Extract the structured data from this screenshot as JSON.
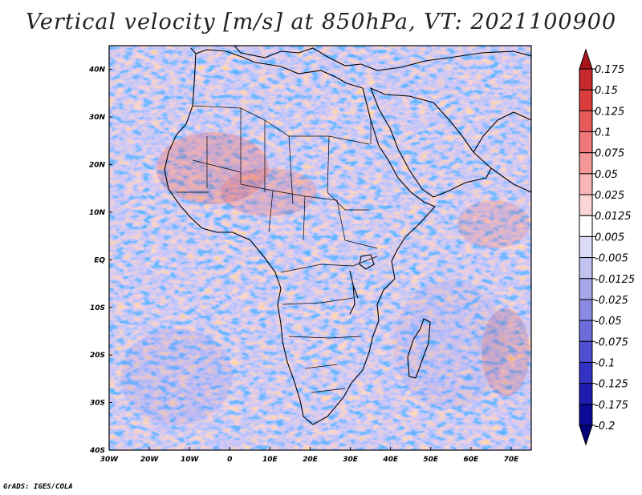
{
  "title": "Vertical velocity [m/s] at 850hPa, VT: 2021100900",
  "footer": "GrADS: IGES/COLA",
  "map": {
    "lon_ticks": [
      "30W",
      "20W",
      "10W",
      "0",
      "10E",
      "20E",
      "30E",
      "40E",
      "50E",
      "60E",
      "70E"
    ],
    "lat_ticks": [
      "40N",
      "30N",
      "20N",
      "10N",
      "EQ",
      "10S",
      "20S",
      "30S",
      "40S"
    ]
  },
  "colorbar": {
    "labels": [
      "0.175",
      "0.15",
      "0.125",
      "0.1",
      "0.075",
      "0.05",
      "0.025",
      "0.0125",
      "0.005",
      "-0.005",
      "-0.0125",
      "-0.025",
      "-0.05",
      "-0.075",
      "-0.1",
      "-0.125",
      "-0.175",
      "-0.2"
    ],
    "colors": [
      "#a8141c",
      "#c8282e",
      "#dc3c3c",
      "#e85a5a",
      "#f07878",
      "#f59898",
      "#f9b6b6",
      "#fcd6d6",
      "#ffffff",
      "#dcdcf7",
      "#c2c2f1",
      "#a6a6ea",
      "#8a8ae3",
      "#6c6cdb",
      "#4e4ed0",
      "#3232c4",
      "#1c1cb0",
      "#0a0a96",
      "#000078"
    ]
  }
}
